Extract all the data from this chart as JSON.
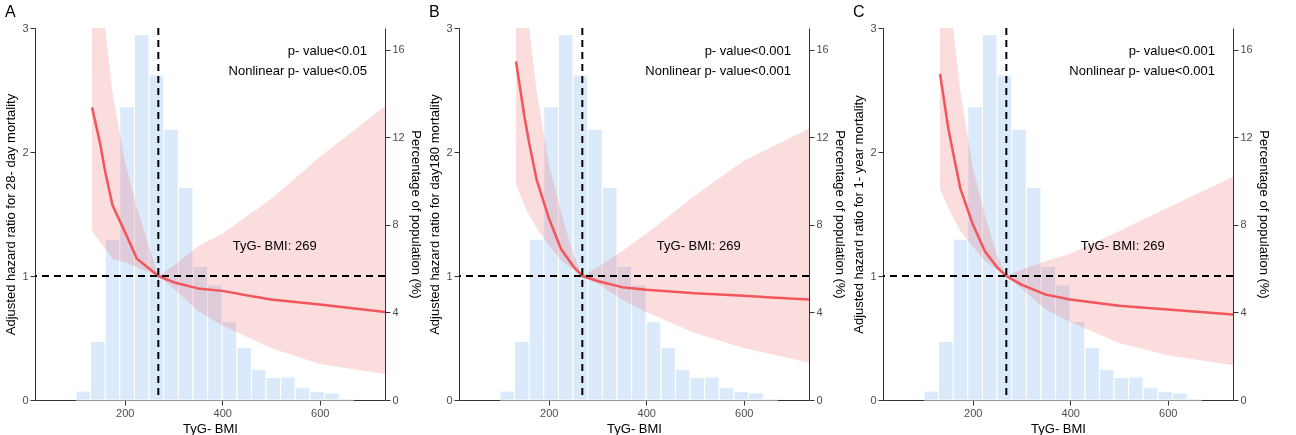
{
  "chart_data": [
    {
      "type": "line",
      "title": "A",
      "xlabel": "TyG- BMI",
      "ylabel": "Adjusted hazard ratio for 28- day mortality",
      "y2label": "Percentage of population (%)",
      "xlim": [
        16,
        734
      ],
      "xticks": [
        200,
        400,
        600
      ],
      "ylim": [
        0,
        3
      ],
      "yticks": [
        0,
        1,
        2,
        3
      ],
      "y2lim": [
        0,
        17
      ],
      "y2ticks": [
        0,
        4,
        8,
        12,
        16
      ],
      "annotations": [
        "p- value<0.01",
        "Nonlinear p- value<0.05",
        "TyG- BMI: 269"
      ],
      "ref_lines": [
        {
          "axis": "x",
          "value": 269,
          "color": "#000000",
          "line_style": "dashed"
        },
        {
          "axis": "y",
          "value": 1,
          "color": "#000000",
          "line_style": "dashed"
        }
      ],
      "series": [
        {
          "type": "histogram",
          "axis": "y2",
          "color": "#dbeafb",
          "bins": [
            100,
            130,
            160,
            190,
            220,
            250,
            280,
            310,
            340,
            370,
            400,
            430,
            460,
            490,
            520,
            550,
            580,
            610,
            640,
            670
          ],
          "values": [
            0.41,
            2.68,
            7.35,
            13.4,
            16.7,
            14.85,
            12.37,
            9.72,
            6.11,
            5.26,
            3.58,
            2.41,
            1.39,
            1.02,
            1.05,
            0.56,
            0.38,
            0.32,
            0.07
          ]
        },
        {
          "type": "line",
          "color": "#f2555a",
          "x": [
            133,
            150,
            160,
            175,
            200,
            225,
            250,
            269,
            300,
            350,
            400,
            500,
            600,
            734
          ],
          "values": [
            2.36,
            2.06,
            1.84,
            1.57,
            1.36,
            1.14,
            1.06,
            1.0,
            0.95,
            0.9,
            0.88,
            0.81,
            0.77,
            0.71
          ],
          "lower": [
            1.36,
            1.27,
            1.22,
            1.14,
            1.11,
            1.07,
            1.03,
            1.0,
            0.9,
            0.72,
            0.6,
            0.42,
            0.29,
            0.21
          ],
          "upper": [
            3,
            3,
            3,
            2.48,
            1.93,
            1.55,
            1.24,
            1.0,
            1.08,
            1.24,
            1.34,
            1.62,
            1.96,
            2.37
          ]
        }
      ]
    },
    {
      "type": "line",
      "title": "B",
      "xlabel": "TyG- BMI",
      "ylabel": "Adjusted hazard ratio for day180 mortality",
      "y2label": "Percentage of population (%)",
      "xlim": [
        16,
        734
      ],
      "xticks": [
        200,
        400,
        600
      ],
      "ylim": [
        0,
        3
      ],
      "yticks": [
        0,
        1,
        2,
        3
      ],
      "y2lim": [
        0,
        17
      ],
      "y2ticks": [
        0,
        4,
        8,
        12,
        16
      ],
      "annotations": [
        "p- value<0.001",
        "Nonlinear p- value<0.001",
        "TyG- BMI: 269"
      ],
      "ref_lines": [
        {
          "axis": "x",
          "value": 269,
          "color": "#000000",
          "line_style": "dashed"
        },
        {
          "axis": "y",
          "value": 1,
          "color": "#000000",
          "line_style": "dashed"
        }
      ],
      "series": [
        {
          "type": "histogram",
          "axis": "y2",
          "color": "#dbeafb",
          "bins": [
            100,
            130,
            160,
            190,
            220,
            250,
            280,
            310,
            340,
            370,
            400,
            430,
            460,
            490,
            520,
            550,
            580,
            610,
            640,
            670
          ],
          "values": [
            0.41,
            2.68,
            7.35,
            13.4,
            16.7,
            14.85,
            12.37,
            9.72,
            6.11,
            5.26,
            3.58,
            2.41,
            1.39,
            1.02,
            1.05,
            0.56,
            0.38,
            0.32,
            0.07
          ]
        },
        {
          "type": "line",
          "color": "#f2555a",
          "x": [
            133,
            150,
            160,
            175,
            200,
            225,
            250,
            269,
            300,
            350,
            400,
            500,
            600,
            734
          ],
          "values": [
            2.73,
            2.29,
            2.07,
            1.78,
            1.47,
            1.22,
            1.08,
            1.0,
            0.96,
            0.91,
            0.89,
            0.86,
            0.84,
            0.81
          ],
          "lower": [
            1.74,
            1.57,
            1.49,
            1.39,
            1.25,
            1.13,
            1.05,
            1.0,
            0.94,
            0.81,
            0.71,
            0.54,
            0.42,
            0.3
          ],
          "upper": [
            3,
            3,
            3,
            2.5,
            1.91,
            1.52,
            1.18,
            1.0,
            1.07,
            1.2,
            1.34,
            1.65,
            1.93,
            2.19
          ]
        }
      ]
    },
    {
      "type": "line",
      "title": "C",
      "xlabel": "TyG- BMI",
      "ylabel": "Adjusted hazard ratio for 1- year mortality",
      "y2label": "Percentage of population (%)",
      "xlim": [
        16,
        734
      ],
      "xticks": [
        200,
        400,
        600
      ],
      "ylim": [
        0,
        3
      ],
      "yticks": [
        0,
        1,
        2,
        3
      ],
      "y2lim": [
        0,
        17
      ],
      "y2ticks": [
        0,
        4,
        8,
        12,
        16
      ],
      "annotations": [
        "p- value<0.001",
        "Nonlinear p- value<0.001",
        "TyG- BMI: 269"
      ],
      "ref_lines": [
        {
          "axis": "x",
          "value": 269,
          "color": "#000000",
          "line_style": "dashed"
        },
        {
          "axis": "y",
          "value": 1,
          "color": "#000000",
          "line_style": "dashed"
        }
      ],
      "series": [
        {
          "type": "histogram",
          "axis": "y2",
          "color": "#dbeafb",
          "bins": [
            100,
            130,
            160,
            190,
            220,
            250,
            280,
            310,
            340,
            370,
            400,
            430,
            460,
            490,
            520,
            550,
            580,
            610,
            640,
            670
          ],
          "values": [
            0.41,
            2.68,
            7.35,
            13.4,
            16.7,
            14.85,
            12.37,
            9.72,
            6.11,
            5.26,
            3.58,
            2.41,
            1.39,
            1.02,
            1.05,
            0.56,
            0.38,
            0.32,
            0.07
          ]
        },
        {
          "type": "line",
          "color": "#f2555a",
          "x": [
            133,
            150,
            160,
            175,
            200,
            225,
            250,
            269,
            300,
            350,
            400,
            500,
            600,
            734
          ],
          "values": [
            2.63,
            2.19,
            1.99,
            1.7,
            1.42,
            1.2,
            1.07,
            1.0,
            0.93,
            0.85,
            0.81,
            0.76,
            0.73,
            0.69
          ],
          "lower": [
            1.7,
            1.55,
            1.47,
            1.36,
            1.24,
            1.12,
            1.05,
            1.0,
            0.9,
            0.73,
            0.63,
            0.46,
            0.36,
            0.28
          ],
          "upper": [
            3,
            3,
            3,
            2.48,
            1.88,
            1.49,
            1.17,
            1.0,
            1.05,
            1.12,
            1.18,
            1.36,
            1.55,
            1.8
          ]
        }
      ]
    }
  ]
}
